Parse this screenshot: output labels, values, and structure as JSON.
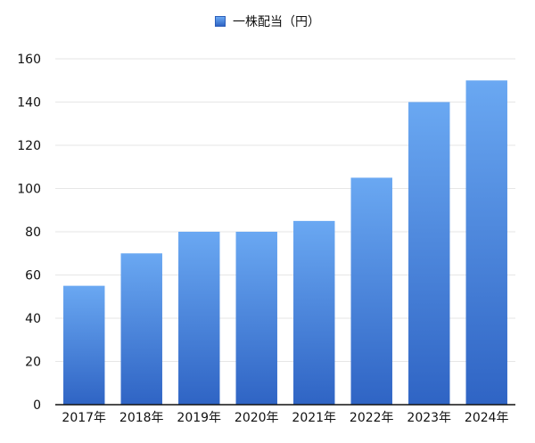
{
  "chart_data": {
    "type": "bar",
    "categories": [
      "2017年",
      "2018年",
      "2019年",
      "2020年",
      "2021年",
      "2022年",
      "2023年",
      "2024年"
    ],
    "series": [
      {
        "name": "一株配当（円）",
        "values": [
          55,
          70,
          80,
          80,
          85,
          105,
          140,
          150
        ]
      }
    ],
    "ylim": [
      0,
      160
    ],
    "yticks": [
      0,
      20,
      40,
      60,
      80,
      100,
      120,
      140,
      160
    ],
    "grid": true,
    "legend": "top-center",
    "colors": {
      "bar_top": "#6aa8f2",
      "bar_bottom": "#2f64c4",
      "grid": "#e6e6e6",
      "axis": "#111111"
    }
  }
}
